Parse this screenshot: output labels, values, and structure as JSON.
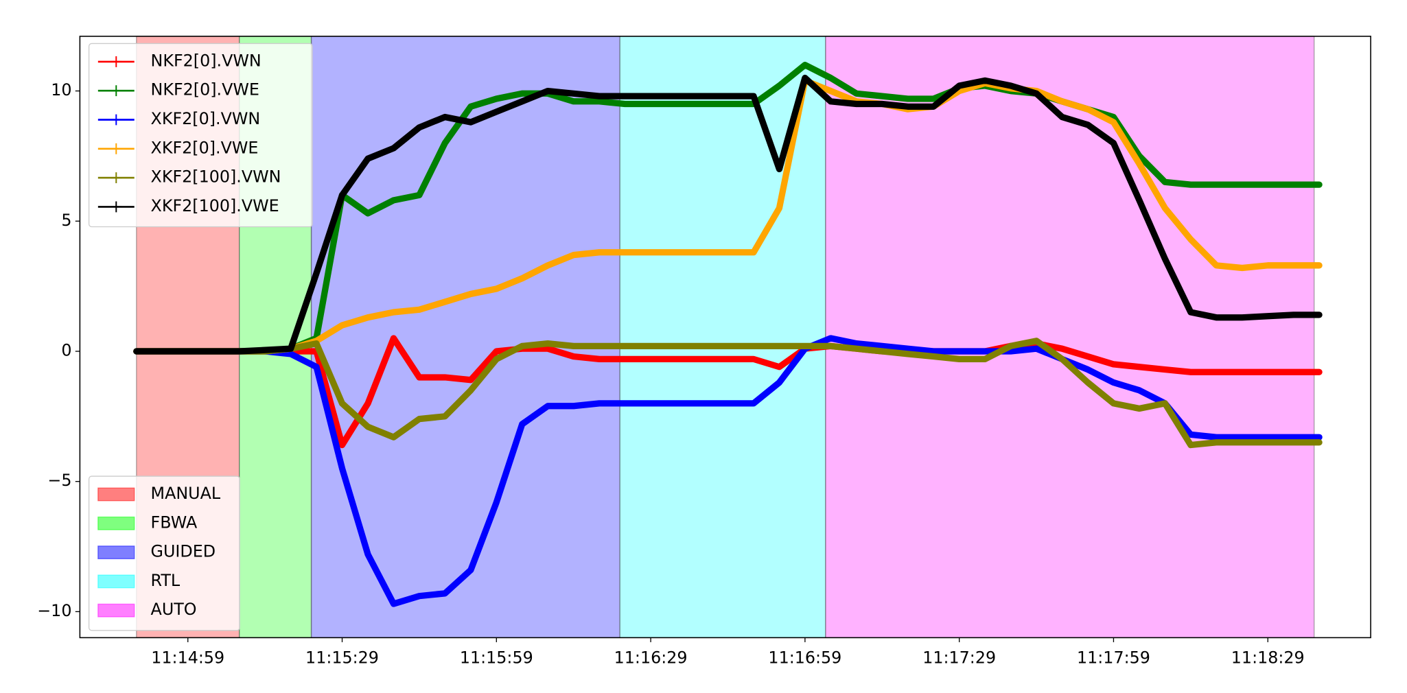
{
  "chart_data": {
    "type": "line",
    "x": [
      "11:14:49",
      "11:14:54",
      "11:14:59",
      "11:15:04",
      "11:15:09",
      "11:15:14",
      "11:15:19",
      "11:15:24",
      "11:15:29",
      "11:15:34",
      "11:15:39",
      "11:15:44",
      "11:15:49",
      "11:15:54",
      "11:15:59",
      "11:16:04",
      "11:16:09",
      "11:16:14",
      "11:16:19",
      "11:16:24",
      "11:16:29",
      "11:16:34",
      "11:16:39",
      "11:16:44",
      "11:16:49",
      "11:16:54",
      "11:16:59",
      "11:17:04",
      "11:17:09",
      "11:17:14",
      "11:17:19",
      "11:17:24",
      "11:17:29",
      "11:17:34",
      "11:17:39",
      "11:17:44",
      "11:17:49",
      "11:17:54",
      "11:17:59",
      "11:18:04",
      "11:18:09",
      "11:18:14",
      "11:18:19",
      "11:18:24",
      "11:18:29",
      "11:18:34",
      "11:18:39"
    ],
    "series": [
      {
        "name": "NKF2[0].VWN",
        "color": "#ff0000",
        "values": [
          0,
          0,
          0,
          0,
          0,
          0,
          0,
          0,
          -3.6,
          -2.0,
          0.5,
          -1.0,
          -1.0,
          -1.1,
          0.0,
          0.1,
          0.1,
          -0.2,
          -0.3,
          -0.3,
          -0.3,
          -0.3,
          -0.3,
          -0.3,
          -0.3,
          -0.6,
          0.1,
          0.2,
          0.1,
          0.0,
          0.0,
          0.0,
          0.0,
          0.0,
          0.2,
          0.3,
          0.1,
          -0.2,
          -0.5,
          -0.6,
          -0.7,
          -0.8,
          -0.8,
          -0.8,
          -0.8,
          -0.8,
          -0.8
        ]
      },
      {
        "name": "NKF2[0].VWE",
        "color": "#008000",
        "values": [
          0,
          0,
          0,
          0,
          0,
          0,
          0.1,
          0.5,
          6.0,
          5.3,
          5.8,
          6.0,
          8.0,
          9.4,
          9.7,
          9.9,
          9.9,
          9.6,
          9.6,
          9.5,
          9.5,
          9.5,
          9.5,
          9.5,
          9.5,
          10.2,
          11.0,
          10.5,
          9.9,
          9.8,
          9.7,
          9.7,
          10.1,
          10.2,
          10.0,
          9.9,
          9.6,
          9.3,
          9.0,
          7.5,
          6.5,
          6.4,
          6.4,
          6.4,
          6.4,
          6.4,
          6.4
        ]
      },
      {
        "name": "XKF2[0].VWN",
        "color": "#0000ff",
        "values": [
          0,
          0,
          0,
          0,
          0,
          0,
          -0.1,
          -0.6,
          -4.5,
          -7.8,
          -9.7,
          -9.4,
          -9.3,
          -8.4,
          -5.8,
          -2.8,
          -2.1,
          -2.1,
          -2.0,
          -2.0,
          -2.0,
          -2.0,
          -2.0,
          -2.0,
          -2.0,
          -1.2,
          0.1,
          0.5,
          0.3,
          0.2,
          0.1,
          0.0,
          0.0,
          0.0,
          0.0,
          0.1,
          -0.3,
          -0.7,
          -1.2,
          -1.5,
          -2.0,
          -3.2,
          -3.3,
          -3.3,
          -3.3,
          -3.3,
          -3.3
        ]
      },
      {
        "name": "XKF2[0].VWE",
        "color": "#ffa500",
        "values": [
          0,
          0,
          0,
          0,
          0,
          0,
          0.1,
          0.4,
          1.0,
          1.3,
          1.5,
          1.6,
          1.9,
          2.2,
          2.4,
          2.8,
          3.3,
          3.7,
          3.8,
          3.8,
          3.8,
          3.8,
          3.8,
          3.8,
          3.8,
          5.5,
          10.4,
          10.0,
          9.6,
          9.5,
          9.3,
          9.4,
          10.0,
          10.3,
          10.1,
          10.0,
          9.6,
          9.3,
          8.8,
          7.2,
          5.5,
          4.3,
          3.3,
          3.2,
          3.3,
          3.3,
          3.3
        ]
      },
      {
        "name": "XKF2[100].VWN",
        "color": "#808000",
        "values": [
          0,
          0,
          0,
          0,
          0,
          0,
          0.1,
          0.3,
          -2.0,
          -2.9,
          -3.3,
          -2.6,
          -2.5,
          -1.5,
          -0.3,
          0.2,
          0.3,
          0.2,
          0.2,
          0.2,
          0.2,
          0.2,
          0.2,
          0.2,
          0.2,
          0.2,
          0.2,
          0.2,
          0.1,
          0.0,
          -0.1,
          -0.2,
          -0.3,
          -0.3,
          0.2,
          0.4,
          -0.3,
          -1.2,
          -2.0,
          -2.2,
          -2.0,
          -3.6,
          -3.5,
          -3.5,
          -3.5,
          -3.5,
          -3.5
        ]
      },
      {
        "name": "XKF2[100].VWE",
        "color": "#000000",
        "values": [
          0,
          0,
          0,
          0,
          0,
          0.05,
          0.1,
          3.0,
          6.0,
          7.4,
          7.8,
          8.6,
          9.0,
          8.8,
          9.2,
          9.6,
          10.0,
          9.9,
          9.8,
          9.8,
          9.8,
          9.8,
          9.8,
          9.8,
          9.8,
          7.0,
          10.5,
          9.6,
          9.5,
          9.5,
          9.4,
          9.4,
          10.2,
          10.4,
          10.2,
          9.9,
          9.0,
          8.7,
          8.0,
          5.8,
          3.55,
          1.5,
          1.3,
          1.3,
          1.35,
          1.4,
          1.4
        ]
      }
    ],
    "spans": [
      {
        "name": "MANUAL",
        "color": "#ff0000",
        "start": "11:14:49",
        "end": "11:15:09"
      },
      {
        "name": "FBWA",
        "color": "#00ff00",
        "start": "11:15:09",
        "end": "11:15:23"
      },
      {
        "name": "GUIDED",
        "color": "#0000ff",
        "start": "11:15:23",
        "end": "11:16:23"
      },
      {
        "name": "RTL",
        "color": "#00ffff",
        "start": "11:16:23",
        "end": "11:17:03"
      },
      {
        "name": "AUTO",
        "color": "#ff00ff",
        "start": "11:17:03",
        "end": "11:18:38"
      }
    ],
    "xlim": [
      "11:14:38",
      "11:18:49"
    ],
    "xticks": [
      "11:14:59",
      "11:15:29",
      "11:15:59",
      "11:16:29",
      "11:16:59",
      "11:17:29",
      "11:17:59",
      "11:18:29"
    ],
    "ylim": [
      -11.0,
      12.1
    ],
    "yticks": [
      {
        "value": -10,
        "label": "−10"
      },
      {
        "value": -5,
        "label": "−5"
      },
      0,
      5,
      10
    ],
    "legend": "upper left",
    "span_legend": "lower left"
  }
}
